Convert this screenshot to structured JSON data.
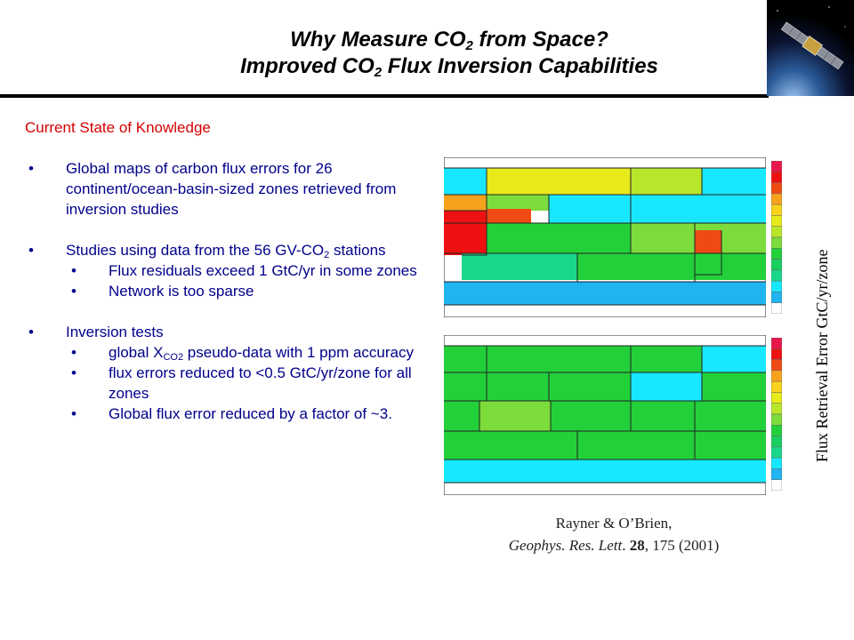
{
  "header": {
    "title_line1_pre": "Why Measure CO",
    "title_line1_sub": "2",
    "title_line1_post": " from Space?",
    "title_line2_pre": "Improved CO",
    "title_line2_sub": "2",
    "title_line2_post": " Flux Inversion Capabilities",
    "image_icon": "satellite-icon"
  },
  "content": {
    "section_heading": "Current State of Knowledge",
    "bullet_glyph": "•",
    "bullets": [
      {
        "text": "Global maps of carbon flux errors for 26 continent/ocean-basin-sized zones retrieved from inversion studies"
      },
      {
        "text_pre": "Studies using data from the 56 GV-CO",
        "text_sub": "2",
        "text_post": " stations",
        "subbullets": [
          {
            "text": "Flux residuals exceed 1 GtC/yr in some zones"
          },
          {
            "text": "Network is too sparse"
          }
        ]
      },
      {
        "text": "Inversion tests",
        "subbullets": [
          {
            "text_pre": "global X",
            "text_sub": "CO2",
            "text_post": " pseudo-data with 1 ppm accuracy"
          },
          {
            "text": "flux errors reduced to <0.5 GtC/yr/zone for all zones"
          },
          {
            "text": "Global flux error reduced by a factor of ~3."
          }
        ]
      }
    ]
  },
  "figure": {
    "axis_label": "Flux Retrieval Error GtC/yr/zone",
    "colors": {
      "red": "#ee1111",
      "orange_red": "#f04a14",
      "orange": "#f7a21c",
      "yellow": "#e8ea1a",
      "yellow_green": "#b8e62a",
      "light_green": "#7cdc3c",
      "green": "#22d03a",
      "teal_green": "#18d88a",
      "cyan": "#18e8ff",
      "blue": "#20b4f0",
      "grid": "#222222"
    },
    "colorbar": [
      "#e8174a",
      "#ee1111",
      "#f04a14",
      "#f7a21c",
      "#f9d21a",
      "#e8ea1a",
      "#b8e62a",
      "#7cdc3c",
      "#22d03a",
      "#18d060",
      "#18d88a",
      "#18e8ff",
      "#20b4f0",
      "#ffffff"
    ],
    "citation_line1": "Rayner & O’Brien,",
    "citation_journal": "Geophys. Res. Lett",
    "citation_dot": ". ",
    "citation_volume": "28",
    "citation_rest": ", 175  (2001)"
  }
}
